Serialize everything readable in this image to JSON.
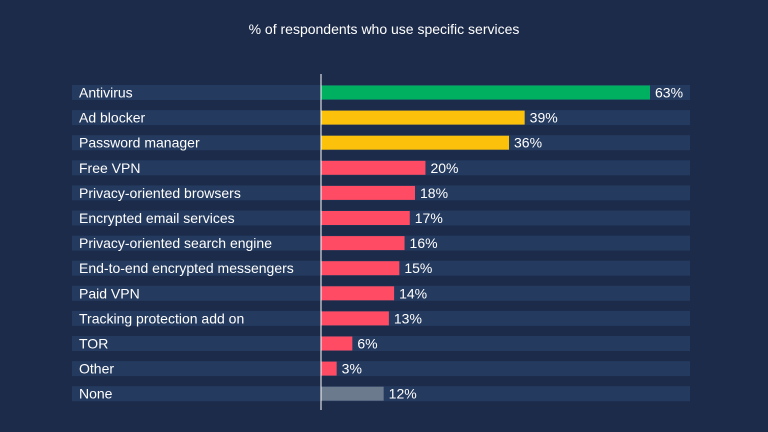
{
  "chart_data": {
    "type": "bar",
    "orientation": "horizontal",
    "title": "% of respondents who use specific services",
    "xlabel": "",
    "ylabel": "",
    "xlim": [
      0,
      63
    ],
    "grid": false,
    "legend": "none",
    "categories": [
      "Antivirus",
      "Ad blocker",
      "Password manager",
      "Free VPN",
      "Privacy-oriented browsers",
      "Encrypted email services",
      "Privacy-oriented search engine",
      "End-to-end encrypted messengers",
      "Paid VPN",
      "Tracking protection add on",
      "TOR",
      "Other",
      "None"
    ],
    "values": [
      63,
      39,
      36,
      20,
      18,
      17,
      16,
      15,
      14,
      13,
      6,
      3,
      12
    ],
    "value_labels": [
      "63%",
      "39%",
      "36%",
      "20%",
      "18%",
      "17%",
      "16%",
      "15%",
      "14%",
      "13%",
      "6%",
      "3%",
      "12%"
    ],
    "bar_colors": [
      "#00b061",
      "#fcc10a",
      "#fcc10a",
      "#ff4b63",
      "#ff4b63",
      "#ff4b63",
      "#ff4b63",
      "#ff4b63",
      "#ff4b63",
      "#ff4b63",
      "#ff4b63",
      "#ff4b63",
      "#6c7a8e"
    ]
  },
  "colors": {
    "background": "#1c2b4a",
    "track": "#243a5e",
    "text": "#ffffff"
  }
}
